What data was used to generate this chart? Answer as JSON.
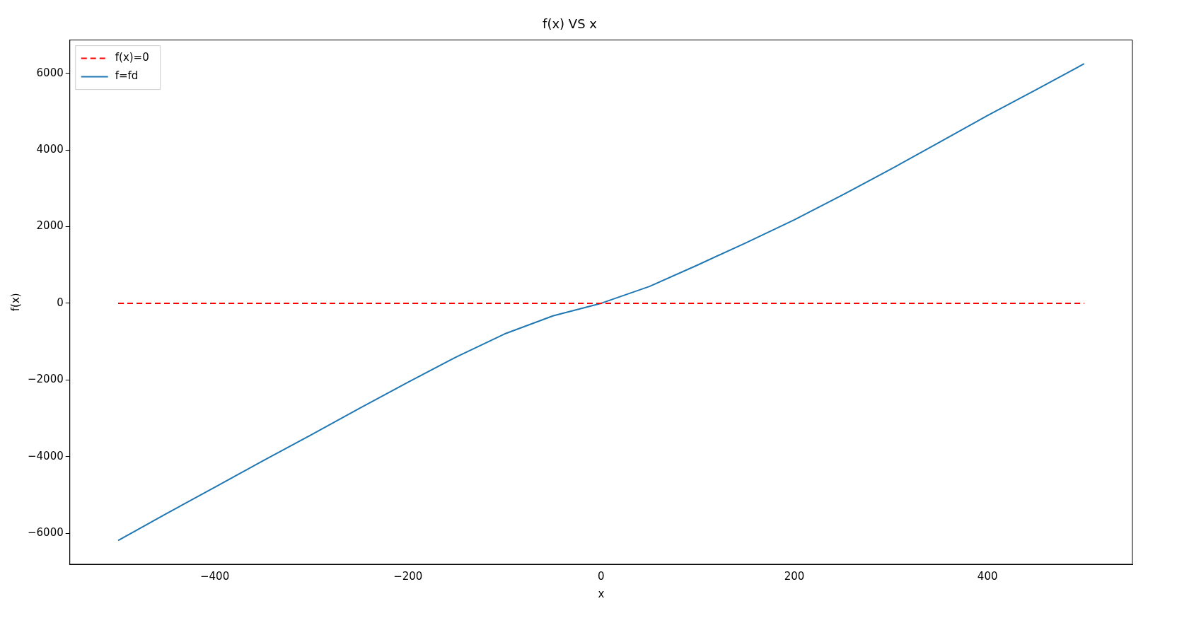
{
  "chart_data": {
    "type": "line",
    "title": "f(x) VS x",
    "xlabel": "x",
    "ylabel": "f(x)",
    "xlim": [
      -550,
      550
    ],
    "ylim": [
      -6810,
      6870
    ],
    "xticks": [
      -400,
      -200,
      0,
      200,
      400
    ],
    "yticks": [
      -6000,
      -4000,
      -2000,
      0,
      2000,
      4000,
      6000
    ],
    "grid": false,
    "legend": "top left",
    "marker": "none",
    "series": [
      {
        "name": "f(x)=0",
        "color": "#ff0000",
        "line_style": "dashed",
        "x": [
          -500,
          500
        ],
        "values": [
          0,
          0
        ]
      },
      {
        "name": "f=fd",
        "color": "#1f77b4",
        "line_style": "solid",
        "x": [
          -500,
          -450,
          -400,
          -350,
          -300,
          -250,
          -200,
          -150,
          -100,
          -50,
          0,
          50,
          100,
          150,
          200,
          250,
          300,
          350,
          400,
          450,
          500
        ],
        "values": [
          -6190,
          -5490,
          -4800,
          -4110,
          -3430,
          -2740,
          -2060,
          -1400,
          -800,
          -330,
          0,
          440,
          1000,
          1580,
          2180,
          2830,
          3500,
          4200,
          4900,
          5570,
          6250
        ]
      }
    ]
  }
}
